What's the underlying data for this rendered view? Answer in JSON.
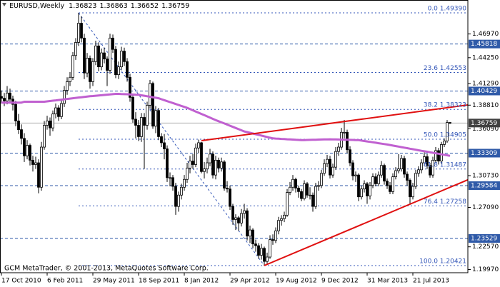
{
  "chart_data": {
    "type": "candlestick",
    "title": "EURUSD,Weekly",
    "footer": "GCM MetaTrader, © 2001-2013, MetaQuotes Software Corp.",
    "x_start": "2010-10-17",
    "ylim": [
      1.196,
      1.507
    ],
    "yticks": [
      {
        "value": 1.4697,
        "label": "1.46970"
      },
      {
        "value": 1.4425,
        "label": "1.44250"
      },
      {
        "value": 1.4129,
        "label": "1.41290"
      },
      {
        "value": 1.3881,
        "label": "1.38810"
      },
      {
        "value": 1.3609,
        "label": "1.36090"
      },
      {
        "value": 1.3073,
        "label": "1.30730"
      },
      {
        "value": 1.2709,
        "label": "1.27090"
      },
      {
        "value": 1.2257,
        "label": "1.22570"
      },
      {
        "value": 1.1997,
        "label": "1.19970"
      }
    ],
    "xticks": [
      {
        "value": "2010-10-17",
        "label": "17 Oct 2010"
      },
      {
        "value": "2011-02-06",
        "label": "6 Feb 2011"
      },
      {
        "value": "2011-05-29",
        "label": "29 May 2011"
      },
      {
        "value": "2011-09-18",
        "label": "18 Sep 2011"
      },
      {
        "value": "2012-01-08",
        "label": "8 Jan 2012"
      },
      {
        "value": "2012-04-29",
        "label": "29 Apr 2012"
      },
      {
        "value": "2012-08-19",
        "label": "19 Aug 2012"
      },
      {
        "value": "2012-12-09",
        "label": "9 Dec 2012"
      },
      {
        "value": "2013-03-31",
        "label": "31 Mar 2013"
      },
      {
        "value": "2013-07-21",
        "label": "21 Jul 2013"
      }
    ],
    "bull_color": "#ffffff",
    "bear_color": "#000000",
    "candles": [
      [
        1.398,
        1.405,
        1.39,
        1.396
      ],
      [
        1.396,
        1.402,
        1.387,
        1.393
      ],
      [
        1.393,
        1.41,
        1.389,
        1.402
      ],
      [
        1.402,
        1.407,
        1.39,
        1.395
      ],
      [
        1.395,
        1.399,
        1.382,
        1.389
      ],
      [
        1.389,
        1.393,
        1.364,
        1.37
      ],
      [
        1.37,
        1.378,
        1.355,
        1.36
      ],
      [
        1.36,
        1.366,
        1.343,
        1.35
      ],
      [
        1.35,
        1.356,
        1.323,
        1.33
      ],
      [
        1.33,
        1.348,
        1.326,
        1.342
      ],
      [
        1.342,
        1.344,
        1.319,
        1.325
      ],
      [
        1.325,
        1.33,
        1.312,
        1.32
      ],
      [
        1.32,
        1.329,
        1.315,
        1.322
      ],
      [
        1.322,
        1.326,
        1.287,
        1.294
      ],
      [
        1.294,
        1.346,
        1.29,
        1.34
      ],
      [
        1.34,
        1.37,
        1.337,
        1.365
      ],
      [
        1.365,
        1.376,
        1.36,
        1.37
      ],
      [
        1.37,
        1.374,
        1.353,
        1.362
      ],
      [
        1.362,
        1.382,
        1.358,
        1.378
      ],
      [
        1.378,
        1.39,
        1.373,
        1.385
      ],
      [
        1.385,
        1.388,
        1.37,
        1.375
      ],
      [
        1.375,
        1.395,
        1.372,
        1.39
      ],
      [
        1.39,
        1.41,
        1.386,
        1.405
      ],
      [
        1.405,
        1.42,
        1.4,
        1.415
      ],
      [
        1.415,
        1.426,
        1.41,
        1.42
      ],
      [
        1.42,
        1.449,
        1.417,
        1.445
      ],
      [
        1.445,
        1.465,
        1.44,
        1.46
      ],
      [
        1.46,
        1.4939,
        1.456,
        1.482
      ],
      [
        1.482,
        1.49,
        1.46,
        1.465
      ],
      [
        1.465,
        1.47,
        1.418,
        1.425
      ],
      [
        1.425,
        1.448,
        1.42,
        1.442
      ],
      [
        1.442,
        1.445,
        1.407,
        1.415
      ],
      [
        1.415,
        1.442,
        1.41,
        1.438
      ],
      [
        1.438,
        1.462,
        1.434,
        1.456
      ],
      [
        1.456,
        1.46,
        1.427,
        1.432
      ],
      [
        1.432,
        1.453,
        1.428,
        1.448
      ],
      [
        1.448,
        1.454,
        1.436,
        1.441
      ],
      [
        1.441,
        1.444,
        1.41,
        1.428
      ],
      [
        1.428,
        1.47,
        1.424,
        1.465
      ],
      [
        1.465,
        1.469,
        1.448,
        1.452
      ],
      [
        1.452,
        1.456,
        1.419,
        1.423
      ],
      [
        1.423,
        1.438,
        1.418,
        1.432
      ],
      [
        1.432,
        1.455,
        1.428,
        1.45
      ],
      [
        1.45,
        1.454,
        1.433,
        1.438
      ],
      [
        1.438,
        1.442,
        1.415,
        1.42
      ],
      [
        1.42,
        1.424,
        1.392,
        1.397
      ],
      [
        1.397,
        1.4,
        1.368,
        1.372
      ],
      [
        1.372,
        1.38,
        1.35,
        1.365
      ],
      [
        1.365,
        1.371,
        1.347,
        1.352
      ],
      [
        1.352,
        1.379,
        1.346,
        1.374
      ],
      [
        1.374,
        1.379,
        1.315,
        1.365
      ],
      [
        1.365,
        1.392,
        1.36,
        1.388
      ],
      [
        1.388,
        1.417,
        1.384,
        1.413
      ],
      [
        1.413,
        1.415,
        1.361,
        1.364
      ],
      [
        1.364,
        1.387,
        1.356,
        1.382
      ],
      [
        1.382,
        1.385,
        1.348,
        1.352
      ],
      [
        1.352,
        1.356,
        1.34,
        1.345
      ],
      [
        1.345,
        1.355,
        1.326,
        1.338
      ],
      [
        1.338,
        1.342,
        1.3,
        1.305
      ],
      [
        1.305,
        1.311,
        1.295,
        1.305
      ],
      [
        1.305,
        1.308,
        1.29,
        1.295
      ],
      [
        1.295,
        1.299,
        1.2624,
        1.272
      ],
      [
        1.272,
        1.289,
        1.266,
        1.285
      ],
      [
        1.285,
        1.298,
        1.28,
        1.294
      ],
      [
        1.294,
        1.308,
        1.29,
        1.303
      ],
      [
        1.303,
        1.322,
        1.299,
        1.316
      ],
      [
        1.316,
        1.33,
        1.31,
        1.324
      ],
      [
        1.324,
        1.332,
        1.315,
        1.32
      ],
      [
        1.32,
        1.344,
        1.317,
        1.339
      ],
      [
        1.339,
        1.3486,
        1.333,
        1.345
      ],
      [
        1.345,
        1.346,
        1.31,
        1.312
      ],
      [
        1.312,
        1.323,
        1.304,
        1.315
      ],
      [
        1.315,
        1.328,
        1.31,
        1.322
      ],
      [
        1.322,
        1.338,
        1.318,
        1.332
      ],
      [
        1.332,
        1.335,
        1.304,
        1.308
      ],
      [
        1.308,
        1.33,
        1.303,
        1.325
      ],
      [
        1.325,
        1.328,
        1.311,
        1.316
      ],
      [
        1.316,
        1.328,
        1.312,
        1.323
      ],
      [
        1.323,
        1.325,
        1.29,
        1.293
      ],
      [
        1.293,
        1.301,
        1.288,
        1.292
      ],
      [
        1.292,
        1.296,
        1.268,
        1.272
      ],
      [
        1.272,
        1.275,
        1.251,
        1.257
      ],
      [
        1.257,
        1.263,
        1.245,
        1.259
      ],
      [
        1.259,
        1.261,
        1.244,
        1.253
      ],
      [
        1.253,
        1.269,
        1.249,
        1.264
      ],
      [
        1.264,
        1.275,
        1.258,
        1.267
      ],
      [
        1.267,
        1.27,
        1.233,
        1.238
      ],
      [
        1.238,
        1.25,
        1.23,
        1.245
      ],
      [
        1.245,
        1.247,
        1.224,
        1.229
      ],
      [
        1.229,
        1.234,
        1.22,
        1.227
      ],
      [
        1.227,
        1.23,
        1.212,
        1.216
      ],
      [
        1.216,
        1.229,
        1.211,
        1.224
      ],
      [
        1.224,
        1.226,
        1.2042,
        1.209
      ],
      [
        1.209,
        1.219,
        1.206,
        1.214
      ],
      [
        1.214,
        1.239,
        1.212,
        1.234
      ],
      [
        1.234,
        1.24,
        1.228,
        1.233
      ],
      [
        1.233,
        1.248,
        1.23,
        1.244
      ],
      [
        1.244,
        1.26,
        1.24,
        1.256
      ],
      [
        1.256,
        1.262,
        1.25,
        1.258
      ],
      [
        1.258,
        1.266,
        1.254,
        1.262
      ],
      [
        1.262,
        1.292,
        1.26,
        1.288
      ],
      [
        1.288,
        1.3,
        1.285,
        1.294
      ],
      [
        1.294,
        1.308,
        1.29,
        1.303
      ],
      [
        1.303,
        1.305,
        1.288,
        1.293
      ],
      [
        1.293,
        1.296,
        1.282,
        1.289
      ],
      [
        1.289,
        1.292,
        1.278,
        1.281
      ],
      [
        1.281,
        1.302,
        1.279,
        1.298
      ],
      [
        1.298,
        1.3,
        1.282,
        1.285
      ],
      [
        1.285,
        1.294,
        1.28,
        1.285
      ],
      [
        1.285,
        1.288,
        1.266,
        1.272
      ],
      [
        1.272,
        1.299,
        1.269,
        1.295
      ],
      [
        1.295,
        1.301,
        1.29,
        1.296
      ],
      [
        1.296,
        1.314,
        1.293,
        1.31
      ],
      [
        1.31,
        1.326,
        1.307,
        1.321
      ],
      [
        1.321,
        1.331,
        1.317,
        1.326
      ],
      [
        1.326,
        1.33,
        1.304,
        1.308
      ],
      [
        1.308,
        1.321,
        1.305,
        1.317
      ],
      [
        1.317,
        1.34,
        1.314,
        1.335
      ],
      [
        1.335,
        1.345,
        1.33,
        1.34
      ],
      [
        1.34,
        1.362,
        1.337,
        1.357
      ],
      [
        1.357,
        1.3711,
        1.35,
        1.357
      ],
      [
        1.357,
        1.36,
        1.333,
        1.337
      ],
      [
        1.337,
        1.341,
        1.318,
        1.322
      ],
      [
        1.322,
        1.325,
        1.302,
        1.307
      ],
      [
        1.307,
        1.312,
        1.3,
        1.308
      ],
      [
        1.308,
        1.31,
        1.278,
        1.283
      ],
      [
        1.283,
        1.296,
        1.28,
        1.292
      ],
      [
        1.292,
        1.302,
        1.288,
        1.298
      ],
      [
        1.298,
        1.3,
        1.275,
        1.284
      ],
      [
        1.284,
        1.3,
        1.28,
        1.296
      ],
      [
        1.296,
        1.31,
        1.293,
        1.306
      ],
      [
        1.306,
        1.31,
        1.295,
        1.298
      ],
      [
        1.298,
        1.312,
        1.295,
        1.308
      ],
      [
        1.308,
        1.324,
        1.305,
        1.319
      ],
      [
        1.319,
        1.321,
        1.297,
        1.301
      ],
      [
        1.301,
        1.304,
        1.292,
        1.296
      ],
      [
        1.296,
        1.3,
        1.286,
        1.289
      ],
      [
        1.289,
        1.31,
        1.286,
        1.306
      ],
      [
        1.306,
        1.317,
        1.303,
        1.313
      ],
      [
        1.313,
        1.332,
        1.31,
        1.315
      ],
      [
        1.315,
        1.331,
        1.312,
        1.327
      ],
      [
        1.327,
        1.33,
        1.305,
        1.309
      ],
      [
        1.309,
        1.312,
        1.296,
        1.302
      ],
      [
        1.302,
        1.304,
        1.275,
        1.283
      ],
      [
        1.283,
        1.299,
        1.28,
        1.295
      ],
      [
        1.295,
        1.314,
        1.292,
        1.31
      ],
      [
        1.31,
        1.318,
        1.306,
        1.314
      ],
      [
        1.314,
        1.326,
        1.31,
        1.322
      ],
      [
        1.322,
        1.334,
        1.318,
        1.329
      ],
      [
        1.329,
        1.332,
        1.315,
        1.319
      ],
      [
        1.319,
        1.322,
        1.305,
        1.308
      ],
      [
        1.308,
        1.329,
        1.305,
        1.325
      ],
      [
        1.325,
        1.34,
        1.322,
        1.336
      ],
      [
        1.336,
        1.339,
        1.32,
        1.324
      ],
      [
        1.324,
        1.346,
        1.321,
        1.343
      ],
      [
        1.343,
        1.35,
        1.34,
        1.347
      ],
      [
        1.347,
        1.371,
        1.345,
        1.3682
      ],
      [
        1.36823,
        1.36863,
        1.36652,
        1.36759
      ]
    ],
    "moving_average": {
      "color": "#c060d0",
      "values": [
        1.391,
        1.391,
        1.391,
        1.391,
        1.391,
        1.391,
        1.391,
        1.391,
        1.392,
        1.392,
        1.392,
        1.392,
        1.392,
        1.392,
        1.392,
        1.392,
        1.3924,
        1.3928,
        1.3932,
        1.3936,
        1.394,
        1.3944,
        1.3948,
        1.3952,
        1.3956,
        1.396,
        1.3964,
        1.3968,
        1.3972,
        1.3976,
        1.398,
        1.3983,
        1.3986,
        1.3989,
        1.3992,
        1.3995,
        1.3998,
        1.4001,
        1.4004,
        1.4007,
        1.401,
        1.401,
        1.4008,
        1.4007,
        1.4006,
        1.4004,
        1.4003,
        1.4001,
        1.4,
        1.3994,
        1.3989,
        1.3983,
        1.3977,
        1.3971,
        1.3966,
        1.396,
        1.3949,
        1.3938,
        1.3927,
        1.3916,
        1.3905,
        1.3894,
        1.3883,
        1.3872,
        1.3861,
        1.385,
        1.3836,
        1.3822,
        1.3808,
        1.3794,
        1.378,
        1.3766,
        1.3752,
        1.3738,
        1.3724,
        1.371,
        1.3697,
        1.3684,
        1.3671,
        1.3658,
        1.3645,
        1.3632,
        1.3619,
        1.3606,
        1.3593,
        1.358,
        1.3572,
        1.3564,
        1.3556,
        1.3548,
        1.354,
        1.3532,
        1.3524,
        1.3516,
        1.3508,
        1.35,
        1.3498,
        1.3496,
        1.3494,
        1.3492,
        1.349,
        1.3488,
        1.3486,
        1.3484,
        1.3482,
        1.348,
        1.3481,
        1.3482,
        1.3483,
        1.3484,
        1.3485,
        1.3486,
        1.3487,
        1.3488,
        1.3489,
        1.349,
        1.3489,
        1.3488,
        1.3487,
        1.3486,
        1.3485,
        1.3484,
        1.3483,
        1.3482,
        1.3481,
        1.348,
        1.3475,
        1.347,
        1.3465,
        1.346,
        1.3455,
        1.345,
        1.3445,
        1.344,
        1.3435,
        1.343,
        1.3424,
        1.3418,
        1.3412,
        1.3406,
        1.34,
        1.3394,
        1.3388,
        1.3382,
        1.3376,
        1.337,
        1.3364,
        1.3358,
        1.3353,
        1.3347,
        1.3341,
        1.3335,
        1.3329,
        1.3324,
        1.3318,
        1.3312,
        1.3306,
        1.33
      ]
    },
    "levels": {
      "color": "#2f5aa8",
      "values": [
        1.45818,
        1.40429,
        1.33309,
        1.29584,
        1.23529
      ]
    },
    "current_price_color": "#404040",
    "fibonacci": {
      "color": "#3356b8",
      "from": {
        "x": "2011-04-24",
        "y": 1.4939
      },
      "to": {
        "x": "2012-07-22",
        "y": 1.20421
      },
      "levels": [
        {
          "value": 1.4939,
          "label": "0.0 1.49390"
        },
        {
          "value": 1.42553,
          "label": "23.6 1.42553"
        },
        {
          "value": 1.38323,
          "label": "38.2 1.38323"
        },
        {
          "value": 1.34905,
          "label": "50.0 1.34905"
        },
        {
          "value": 1.31487,
          "label": "61.8 1.31487"
        },
        {
          "value": 1.27258,
          "label": "76.4 1.27258"
        },
        {
          "value": 1.20421,
          "label": "100.0 1.20421"
        }
      ]
    },
    "trendlines": [
      {
        "color": "#e01010",
        "points": [
          {
            "x": "2012-02-19",
            "y": 1.3474
          },
          {
            "x": "2013-10-20",
            "y": 1.3856
          }
        ]
      },
      {
        "color": "#e01010",
        "points": [
          {
            "x": "2012-07-22",
            "y": 1.2042
          },
          {
            "x": "2013-10-20",
            "y": 1.2939
          }
        ]
      }
    ]
  }
}
